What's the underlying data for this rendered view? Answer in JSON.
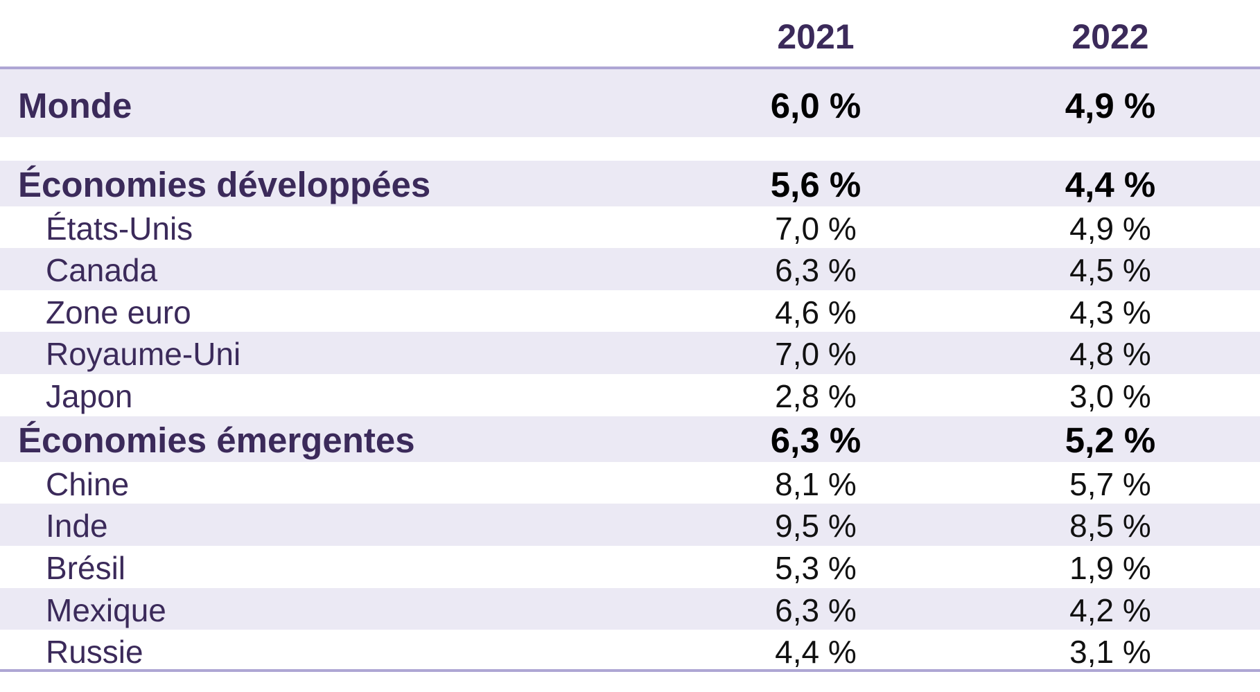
{
  "chart_data": {
    "type": "table",
    "columns": [
      "2021",
      "2022"
    ],
    "rows": [
      {
        "label": "Monde",
        "values": [
          "6,0 %",
          "4,9 %"
        ],
        "level": "total"
      },
      {
        "label": "Économies développées",
        "values": [
          "5,6 %",
          "4,4 %"
        ],
        "level": "group"
      },
      {
        "label": "États-Unis",
        "values": [
          "7,0 %",
          "4,9 %"
        ],
        "level": "country"
      },
      {
        "label": "Canada",
        "values": [
          "6,3 %",
          "4,5 %"
        ],
        "level": "country"
      },
      {
        "label": "Zone euro",
        "values": [
          "4,6 %",
          "4,3 %"
        ],
        "level": "country"
      },
      {
        "label": "Royaume-Uni",
        "values": [
          "7,0 %",
          "4,8 %"
        ],
        "level": "country"
      },
      {
        "label": "Japon",
        "values": [
          "2,8 %",
          "3,0 %"
        ],
        "level": "country"
      },
      {
        "label": "Économies émergentes",
        "values": [
          "6,3 %",
          "5,2 %"
        ],
        "level": "group"
      },
      {
        "label": "Chine",
        "values": [
          "8,1 %",
          "5,7 %"
        ],
        "level": "country"
      },
      {
        "label": "Inde",
        "values": [
          "9,5 %",
          "8,5 %"
        ],
        "level": "country"
      },
      {
        "label": "Brésil",
        "values": [
          "5,3 %",
          "1,9 %"
        ],
        "level": "country"
      },
      {
        "label": "Mexique",
        "values": [
          "6,3 %",
          "4,2 %"
        ],
        "level": "country"
      },
      {
        "label": "Russie",
        "values": [
          "4,4 %",
          "3,1 %"
        ],
        "level": "country"
      }
    ]
  },
  "colors": {
    "header_text": "#3b2a5a",
    "label_text": "#3b2a5a",
    "value_text": "#111111",
    "shaded_row": "#ebe9f4",
    "rule": "#aea6d4"
  }
}
